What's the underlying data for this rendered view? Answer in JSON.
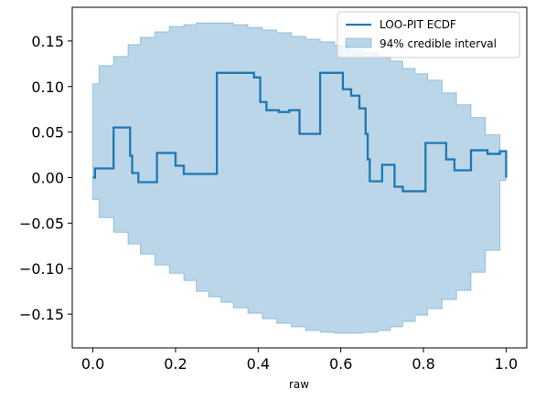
{
  "chart_data": {
    "type": "line",
    "title": "",
    "xlabel": "raw",
    "ylabel": "",
    "xlim": [
      -0.05,
      1.05
    ],
    "ylim": [
      -0.187,
      0.187
    ],
    "xticks": [
      0.0,
      0.2,
      0.4,
      0.6,
      0.8,
      1.0
    ],
    "xtick_labels": [
      "0.0",
      "0.2",
      "0.4",
      "0.6",
      "0.8",
      "1.0"
    ],
    "yticks": [
      -0.15,
      -0.1,
      -0.05,
      0.0,
      0.05,
      0.1,
      0.15
    ],
    "ytick_labels": [
      "−0.15",
      "−0.10",
      "−0.05",
      "0.00",
      "0.05",
      "0.10",
      "0.15"
    ],
    "grid": false,
    "legend_position": "top-right",
    "colors": {
      "line": "#1f77b4",
      "band": "#1f77b4"
    },
    "series": [
      {
        "name": "LOO-PIT ECDF",
        "kind": "step",
        "x": [
          0.0,
          0.005,
          0.05,
          0.09,
          0.095,
          0.11,
          0.155,
          0.2,
          0.22,
          0.3,
          0.39,
          0.405,
          0.42,
          0.45,
          0.475,
          0.5,
          0.55,
          0.605,
          0.625,
          0.645,
          0.66,
          0.665,
          0.67,
          0.7,
          0.73,
          0.75,
          0.805,
          0.855,
          0.875,
          0.915,
          0.955,
          0.985,
          1.0
        ],
        "y": [
          0.0,
          0.01,
          0.055,
          0.024,
          0.005,
          -0.005,
          0.027,
          0.013,
          0.004,
          0.115,
          0.11,
          0.083,
          0.074,
          0.072,
          0.074,
          0.048,
          0.115,
          0.097,
          0.09,
          0.076,
          0.048,
          0.02,
          -0.004,
          0.014,
          -0.01,
          -0.015,
          0.038,
          0.02,
          0.008,
          0.03,
          0.026,
          0.029,
          0.0
        ]
      },
      {
        "name": "94% credible interval",
        "kind": "band",
        "x": [
          0.0,
          0.015,
          0.05,
          0.085,
          0.115,
          0.15,
          0.185,
          0.22,
          0.25,
          0.28,
          0.31,
          0.34,
          0.375,
          0.41,
          0.445,
          0.48,
          0.515,
          0.55,
          0.585,
          0.62,
          0.655,
          0.69,
          0.72,
          0.75,
          0.78,
          0.81,
          0.845,
          0.88,
          0.915,
          0.95,
          0.985,
          1.0
        ],
        "lower": [
          -0.003,
          -0.024,
          -0.044,
          -0.06,
          -0.073,
          -0.084,
          -0.096,
          -0.105,
          -0.113,
          -0.125,
          -0.131,
          -0.137,
          -0.143,
          -0.149,
          -0.155,
          -0.16,
          -0.164,
          -0.168,
          -0.17,
          -0.171,
          -0.171,
          -0.17,
          -0.168,
          -0.164,
          -0.158,
          -0.151,
          -0.144,
          -0.134,
          -0.124,
          -0.104,
          -0.08,
          -0.003
        ],
        "upper": [
          0.103,
          0.123,
          0.133,
          0.146,
          0.154,
          0.16,
          0.166,
          0.168,
          0.17,
          0.17,
          0.17,
          0.168,
          0.165,
          0.162,
          0.159,
          0.155,
          0.152,
          0.149,
          0.145,
          0.14,
          0.137,
          0.133,
          0.128,
          0.12,
          0.114,
          0.107,
          0.093,
          0.08,
          0.066,
          0.047,
          0.029,
          0.003
        ]
      }
    ]
  }
}
